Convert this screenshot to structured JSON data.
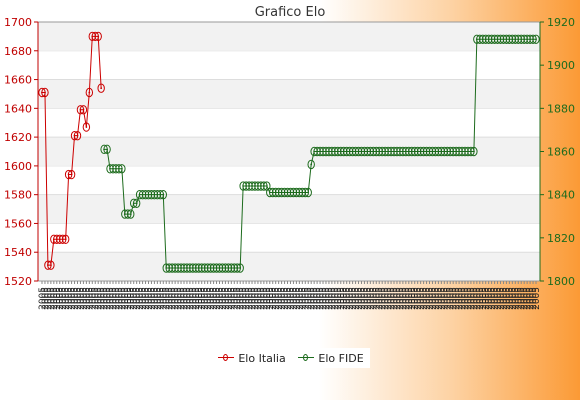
{
  "chart_data": {
    "type": "line",
    "title": "Grafico Elo",
    "left_axis": {
      "min": 1520,
      "max": 1700,
      "ticks": [
        1520,
        1540,
        1560,
        1580,
        1600,
        1620,
        1640,
        1660,
        1680,
        1700
      ]
    },
    "right_axis": {
      "min": 1800,
      "max": 1920,
      "ticks": [
        1800,
        1820,
        1840,
        1860,
        1880,
        1900,
        1920
      ]
    },
    "x_tick_label": "2005",
    "x_count": 168,
    "grid": "horizontal bands",
    "legend_position": "bottom-center",
    "series": [
      {
        "name": "Elo Italia",
        "axis": "left",
        "color": "#cc0000",
        "points": [
          [
            0,
            1651
          ],
          [
            1,
            1651
          ],
          [
            2,
            1531
          ],
          [
            3,
            1531
          ],
          [
            4,
            1549
          ],
          [
            5,
            1549
          ],
          [
            6,
            1549
          ],
          [
            7,
            1549
          ],
          [
            8,
            1549
          ],
          [
            9,
            1594
          ],
          [
            10,
            1594
          ],
          [
            11,
            1621
          ],
          [
            12,
            1621
          ],
          [
            13,
            1639
          ],
          [
            14,
            1639
          ],
          [
            15,
            1627
          ],
          [
            16,
            1651
          ],
          [
            17,
            1690
          ],
          [
            18,
            1690
          ],
          [
            19,
            1690
          ],
          [
            20,
            1654
          ]
        ]
      },
      {
        "name": "Elo FIDE",
        "axis": "right",
        "color": "#1d6b1d",
        "points": [
          [
            21,
            1861
          ],
          [
            22,
            1861
          ],
          [
            23,
            1852
          ],
          [
            24,
            1852
          ],
          [
            25,
            1852
          ],
          [
            26,
            1852
          ],
          [
            27,
            1852
          ],
          [
            28,
            1831
          ],
          [
            29,
            1831
          ],
          [
            30,
            1831
          ],
          [
            31,
            1836
          ],
          [
            32,
            1836
          ],
          [
            33,
            1840
          ],
          [
            34,
            1840
          ],
          [
            35,
            1840
          ],
          [
            36,
            1840
          ],
          [
            37,
            1840
          ],
          [
            38,
            1840
          ],
          [
            39,
            1840
          ],
          [
            40,
            1840
          ],
          [
            41,
            1840
          ],
          [
            42,
            1806
          ],
          [
            43,
            1806
          ],
          [
            44,
            1806
          ],
          [
            45,
            1806
          ],
          [
            46,
            1806
          ],
          [
            47,
            1806
          ],
          [
            48,
            1806
          ],
          [
            49,
            1806
          ],
          [
            50,
            1806
          ],
          [
            51,
            1806
          ],
          [
            52,
            1806
          ],
          [
            53,
            1806
          ],
          [
            54,
            1806
          ],
          [
            55,
            1806
          ],
          [
            56,
            1806
          ],
          [
            57,
            1806
          ],
          [
            58,
            1806
          ],
          [
            59,
            1806
          ],
          [
            60,
            1806
          ],
          [
            61,
            1806
          ],
          [
            62,
            1806
          ],
          [
            63,
            1806
          ],
          [
            64,
            1806
          ],
          [
            65,
            1806
          ],
          [
            66,
            1806
          ],
          [
            67,
            1806
          ],
          [
            68,
            1844
          ],
          [
            69,
            1844
          ],
          [
            70,
            1844
          ],
          [
            71,
            1844
          ],
          [
            72,
            1844
          ],
          [
            73,
            1844
          ],
          [
            74,
            1844
          ],
          [
            75,
            1844
          ],
          [
            76,
            1844
          ],
          [
            77,
            1841
          ],
          [
            78,
            1841
          ],
          [
            79,
            1841
          ],
          [
            80,
            1841
          ],
          [
            81,
            1841
          ],
          [
            82,
            1841
          ],
          [
            83,
            1841
          ],
          [
            84,
            1841
          ],
          [
            85,
            1841
          ],
          [
            86,
            1841
          ],
          [
            87,
            1841
          ],
          [
            88,
            1841
          ],
          [
            89,
            1841
          ],
          [
            90,
            1841
          ],
          [
            91,
            1854
          ],
          [
            92,
            1860
          ],
          [
            93,
            1860
          ],
          [
            94,
            1860
          ],
          [
            95,
            1860
          ],
          [
            96,
            1860
          ],
          [
            97,
            1860
          ],
          [
            98,
            1860
          ],
          [
            99,
            1860
          ],
          [
            100,
            1860
          ],
          [
            101,
            1860
          ],
          [
            102,
            1860
          ],
          [
            103,
            1860
          ],
          [
            104,
            1860
          ],
          [
            105,
            1860
          ],
          [
            106,
            1860
          ],
          [
            107,
            1860
          ],
          [
            108,
            1860
          ],
          [
            109,
            1860
          ],
          [
            110,
            1860
          ],
          [
            111,
            1860
          ],
          [
            112,
            1860
          ],
          [
            113,
            1860
          ],
          [
            114,
            1860
          ],
          [
            115,
            1860
          ],
          [
            116,
            1860
          ],
          [
            117,
            1860
          ],
          [
            118,
            1860
          ],
          [
            119,
            1860
          ],
          [
            120,
            1860
          ],
          [
            121,
            1860
          ],
          [
            122,
            1860
          ],
          [
            123,
            1860
          ],
          [
            124,
            1860
          ],
          [
            125,
            1860
          ],
          [
            126,
            1860
          ],
          [
            127,
            1860
          ],
          [
            128,
            1860
          ],
          [
            129,
            1860
          ],
          [
            130,
            1860
          ],
          [
            131,
            1860
          ],
          [
            132,
            1860
          ],
          [
            133,
            1860
          ],
          [
            134,
            1860
          ],
          [
            135,
            1860
          ],
          [
            136,
            1860
          ],
          [
            137,
            1860
          ],
          [
            138,
            1860
          ],
          [
            139,
            1860
          ],
          [
            140,
            1860
          ],
          [
            141,
            1860
          ],
          [
            142,
            1860
          ],
          [
            143,
            1860
          ],
          [
            144,
            1860
          ],
          [
            145,
            1860
          ],
          [
            146,
            1860
          ],
          [
            147,
            1912
          ],
          [
            148,
            1912
          ],
          [
            149,
            1912
          ],
          [
            150,
            1912
          ],
          [
            151,
            1912
          ],
          [
            152,
            1912
          ],
          [
            153,
            1912
          ],
          [
            154,
            1912
          ],
          [
            155,
            1912
          ],
          [
            156,
            1912
          ],
          [
            157,
            1912
          ],
          [
            158,
            1912
          ],
          [
            159,
            1912
          ],
          [
            160,
            1912
          ],
          [
            161,
            1912
          ],
          [
            162,
            1912
          ],
          [
            163,
            1912
          ],
          [
            164,
            1912
          ],
          [
            165,
            1912
          ],
          [
            166,
            1912
          ],
          [
            167,
            1912
          ]
        ]
      }
    ]
  }
}
